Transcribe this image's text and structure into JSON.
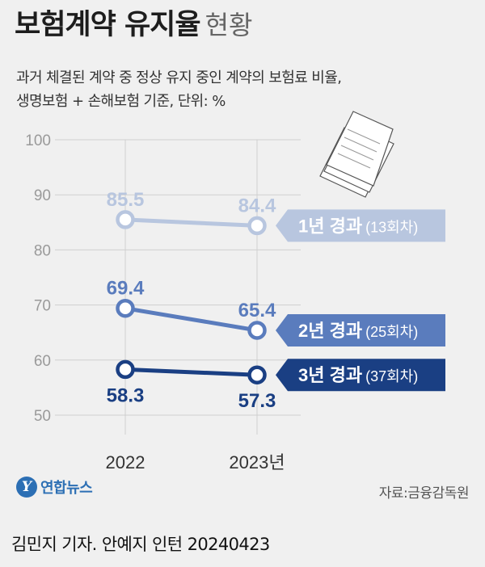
{
  "title": {
    "bold": "보험계약 유지율",
    "light": "현황"
  },
  "subtitle": {
    "line1": "과거 체결된 계약 중 정상 유지 중인 계약의 보험료 비율,",
    "line2": "생명보험 + 손해보험 기준, 단위: %"
  },
  "chart_data": {
    "type": "line",
    "categories": [
      "2022",
      "2023년"
    ],
    "ylim": [
      50,
      100
    ],
    "yticks": [
      100,
      90,
      80,
      70,
      60,
      50
    ],
    "grid": true,
    "series": [
      {
        "name": "1년 경과",
        "name_sub": "(13회차)",
        "values": [
          85.5,
          84.4
        ],
        "color": "#b8c6df",
        "label_side": "above"
      },
      {
        "name": "2년 경과",
        "name_sub": "(25회차)",
        "values": [
          69.4,
          65.4
        ],
        "color": "#5a7cbd",
        "label_side": "above"
      },
      {
        "name": "3년 경과",
        "name_sub": "(37회차)",
        "values": [
          58.3,
          57.3
        ],
        "color": "#1a3f83",
        "label_side": "below"
      }
    ]
  },
  "logo": {
    "mark": "Y",
    "text": "연합뉴스"
  },
  "source": "자료:금융감독원",
  "credit": "김민지 기자. 안예지 인턴  20240423",
  "icon": "document-stack-icon"
}
